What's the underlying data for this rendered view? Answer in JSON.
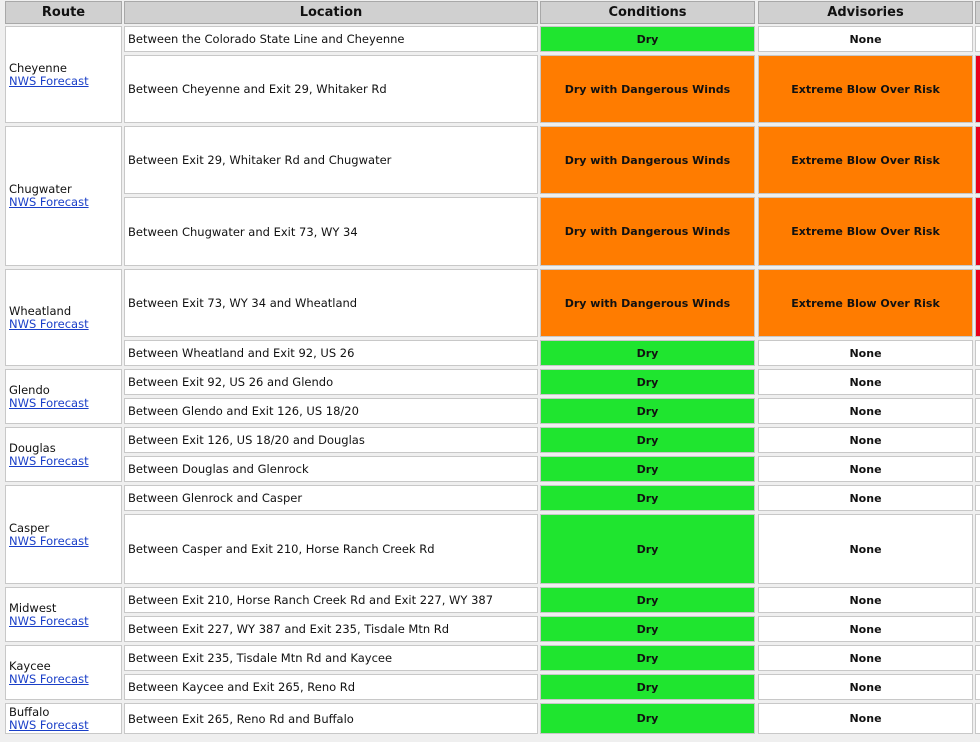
{
  "header": [
    "Route",
    "Location",
    "Conditions",
    "Advisories"
  ],
  "routes": [
    {
      "name": "Cheyenne",
      "link": "NWS Forecast",
      "rows": [
        {
          "location": "Between the Colorado State Line and Cheyenne",
          "condition": "Dry",
          "advisory": "None"
        },
        {
          "location": "Between Cheyenne and Exit 29, Whitaker Rd",
          "condition": "Dry with Dangerous Winds",
          "advisory": "Extreme Blow Over Risk"
        }
      ]
    },
    {
      "name": "Chugwater",
      "link": "NWS Forecast",
      "rows": [
        {
          "location": "Between Exit 29, Whitaker Rd and Chugwater",
          "condition": "Dry with Dangerous Winds",
          "advisory": "Extreme Blow Over Risk"
        },
        {
          "location": "Between Chugwater and Exit 73, WY 34",
          "condition": "Dry with Dangerous Winds",
          "advisory": "Extreme Blow Over Risk"
        }
      ]
    },
    {
      "name": "Wheatland",
      "link": "NWS Forecast",
      "rows": [
        {
          "location": "Between Exit 73, WY 34 and Wheatland",
          "condition": "Dry with Dangerous Winds",
          "advisory": "Extreme Blow Over Risk"
        },
        {
          "location": "Between Wheatland and Exit 92, US 26",
          "condition": "Dry",
          "advisory": "None"
        }
      ]
    },
    {
      "name": "Glendo",
      "link": "NWS Forecast",
      "rows": [
        {
          "location": "Between Exit 92, US 26 and Glendo",
          "condition": "Dry",
          "advisory": "None"
        },
        {
          "location": "Between Glendo and Exit 126, US 18/20",
          "condition": "Dry",
          "advisory": "None"
        }
      ]
    },
    {
      "name": "Douglas",
      "link": "NWS Forecast",
      "rows": [
        {
          "location": "Between Exit 126, US 18/20 and Douglas",
          "condition": "Dry",
          "advisory": "None"
        },
        {
          "location": "Between Douglas and Glenrock",
          "condition": "Dry",
          "advisory": "None"
        }
      ]
    },
    {
      "name": "Casper",
      "link": "NWS Forecast",
      "rows": [
        {
          "location": "Between Glenrock and Casper",
          "condition": "Dry",
          "advisory": "None"
        },
        {
          "location": "Between Casper and Exit 210, Horse Ranch Creek Rd",
          "condition": "Dry",
          "advisory": "None"
        }
      ]
    },
    {
      "name": "Midwest",
      "link": "NWS Forecast",
      "rows": [
        {
          "location": "Between Exit 210, Horse Ranch Creek Rd and Exit 227, WY 387",
          "condition": "Dry",
          "advisory": "None"
        },
        {
          "location": "Between Exit 227, WY 387 and Exit 235, Tisdale Mtn Rd",
          "condition": "Dry",
          "advisory": "None"
        }
      ]
    },
    {
      "name": "Kaycee",
      "link": "NWS Forecast",
      "rows": [
        {
          "location": "Between Exit 235, Tisdale Mtn Rd and Kaycee",
          "condition": "Dry",
          "advisory": "None"
        },
        {
          "location": "Between Kaycee and Exit 265, Reno Rd",
          "condition": "Dry",
          "advisory": "None"
        }
      ]
    },
    {
      "name": "Buffalo",
      "link": "NWS Forecast",
      "rows": [
        {
          "location": "Between Exit 265, Reno Rd and Buffalo",
          "condition": "Dry",
          "advisory": "None"
        }
      ]
    }
  ]
}
